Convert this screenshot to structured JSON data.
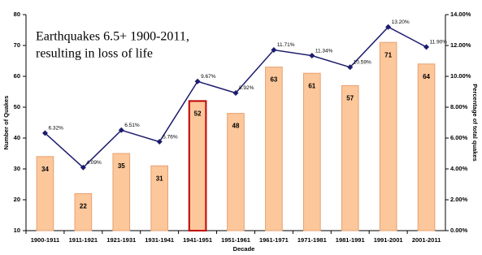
{
  "chart_data": {
    "type": "bar-line",
    "title": [
      "Earthquakes 6.5+ 1900-2011,",
      "resulting in loss of life"
    ],
    "x_label": "Decade",
    "y_label": "Number of Quakes",
    "y2_label": "Percentage of total quakes",
    "categories": [
      "1900-1911",
      "1911-1921",
      "1921-1931",
      "1931-1941",
      "1941-1951",
      "1951-1961",
      "1961-1971",
      "1971-1981",
      "1981-1991",
      "1991-2001",
      "2001-2011"
    ],
    "series": [
      {
        "type": "bar",
        "axis": "y",
        "color": "#fcc79a",
        "edgecolors": [
          "#e8a070",
          "#e8a070",
          "#e8a070",
          "#e8a070",
          "#c00000",
          "#e8a070",
          "#e8a070",
          "#e8a070",
          "#e8a070",
          "#e8a070",
          "#e8a070"
        ],
        "values": [
          34,
          22,
          35,
          31,
          52,
          48,
          63,
          61,
          57,
          71,
          64
        ]
      },
      {
        "type": "line",
        "axis": "y2",
        "color": "#1c1c6e",
        "values": [
          6.32,
          4.09,
          6.51,
          5.76,
          9.67,
          8.92,
          11.71,
          11.34,
          10.59,
          13.2,
          11.9
        ],
        "value_labels": [
          "6.32%",
          "4.09%",
          "6.51%",
          "5.76%",
          "9.67%",
          "8.92%",
          "11.71%",
          "11.34%",
          "10.59%",
          "13.20%",
          "11.90%"
        ]
      }
    ],
    "ylim": [
      10,
      80
    ],
    "yticks": [
      10,
      20,
      30,
      40,
      50,
      60,
      70,
      80
    ],
    "y2lim": [
      0,
      14
    ],
    "y2ticks": [
      {
        "value": 0,
        "label": "0.00%"
      },
      {
        "value": 2,
        "label": "2.00%"
      },
      {
        "value": 4,
        "label": "4.00%"
      },
      {
        "value": 6,
        "label": "6.00%"
      },
      {
        "value": 8,
        "label": "8.00%"
      },
      {
        "value": 10,
        "label": "10.00%"
      },
      {
        "value": 12,
        "label": "12.00%"
      },
      {
        "value": 14,
        "label": "14.00%"
      }
    ]
  }
}
